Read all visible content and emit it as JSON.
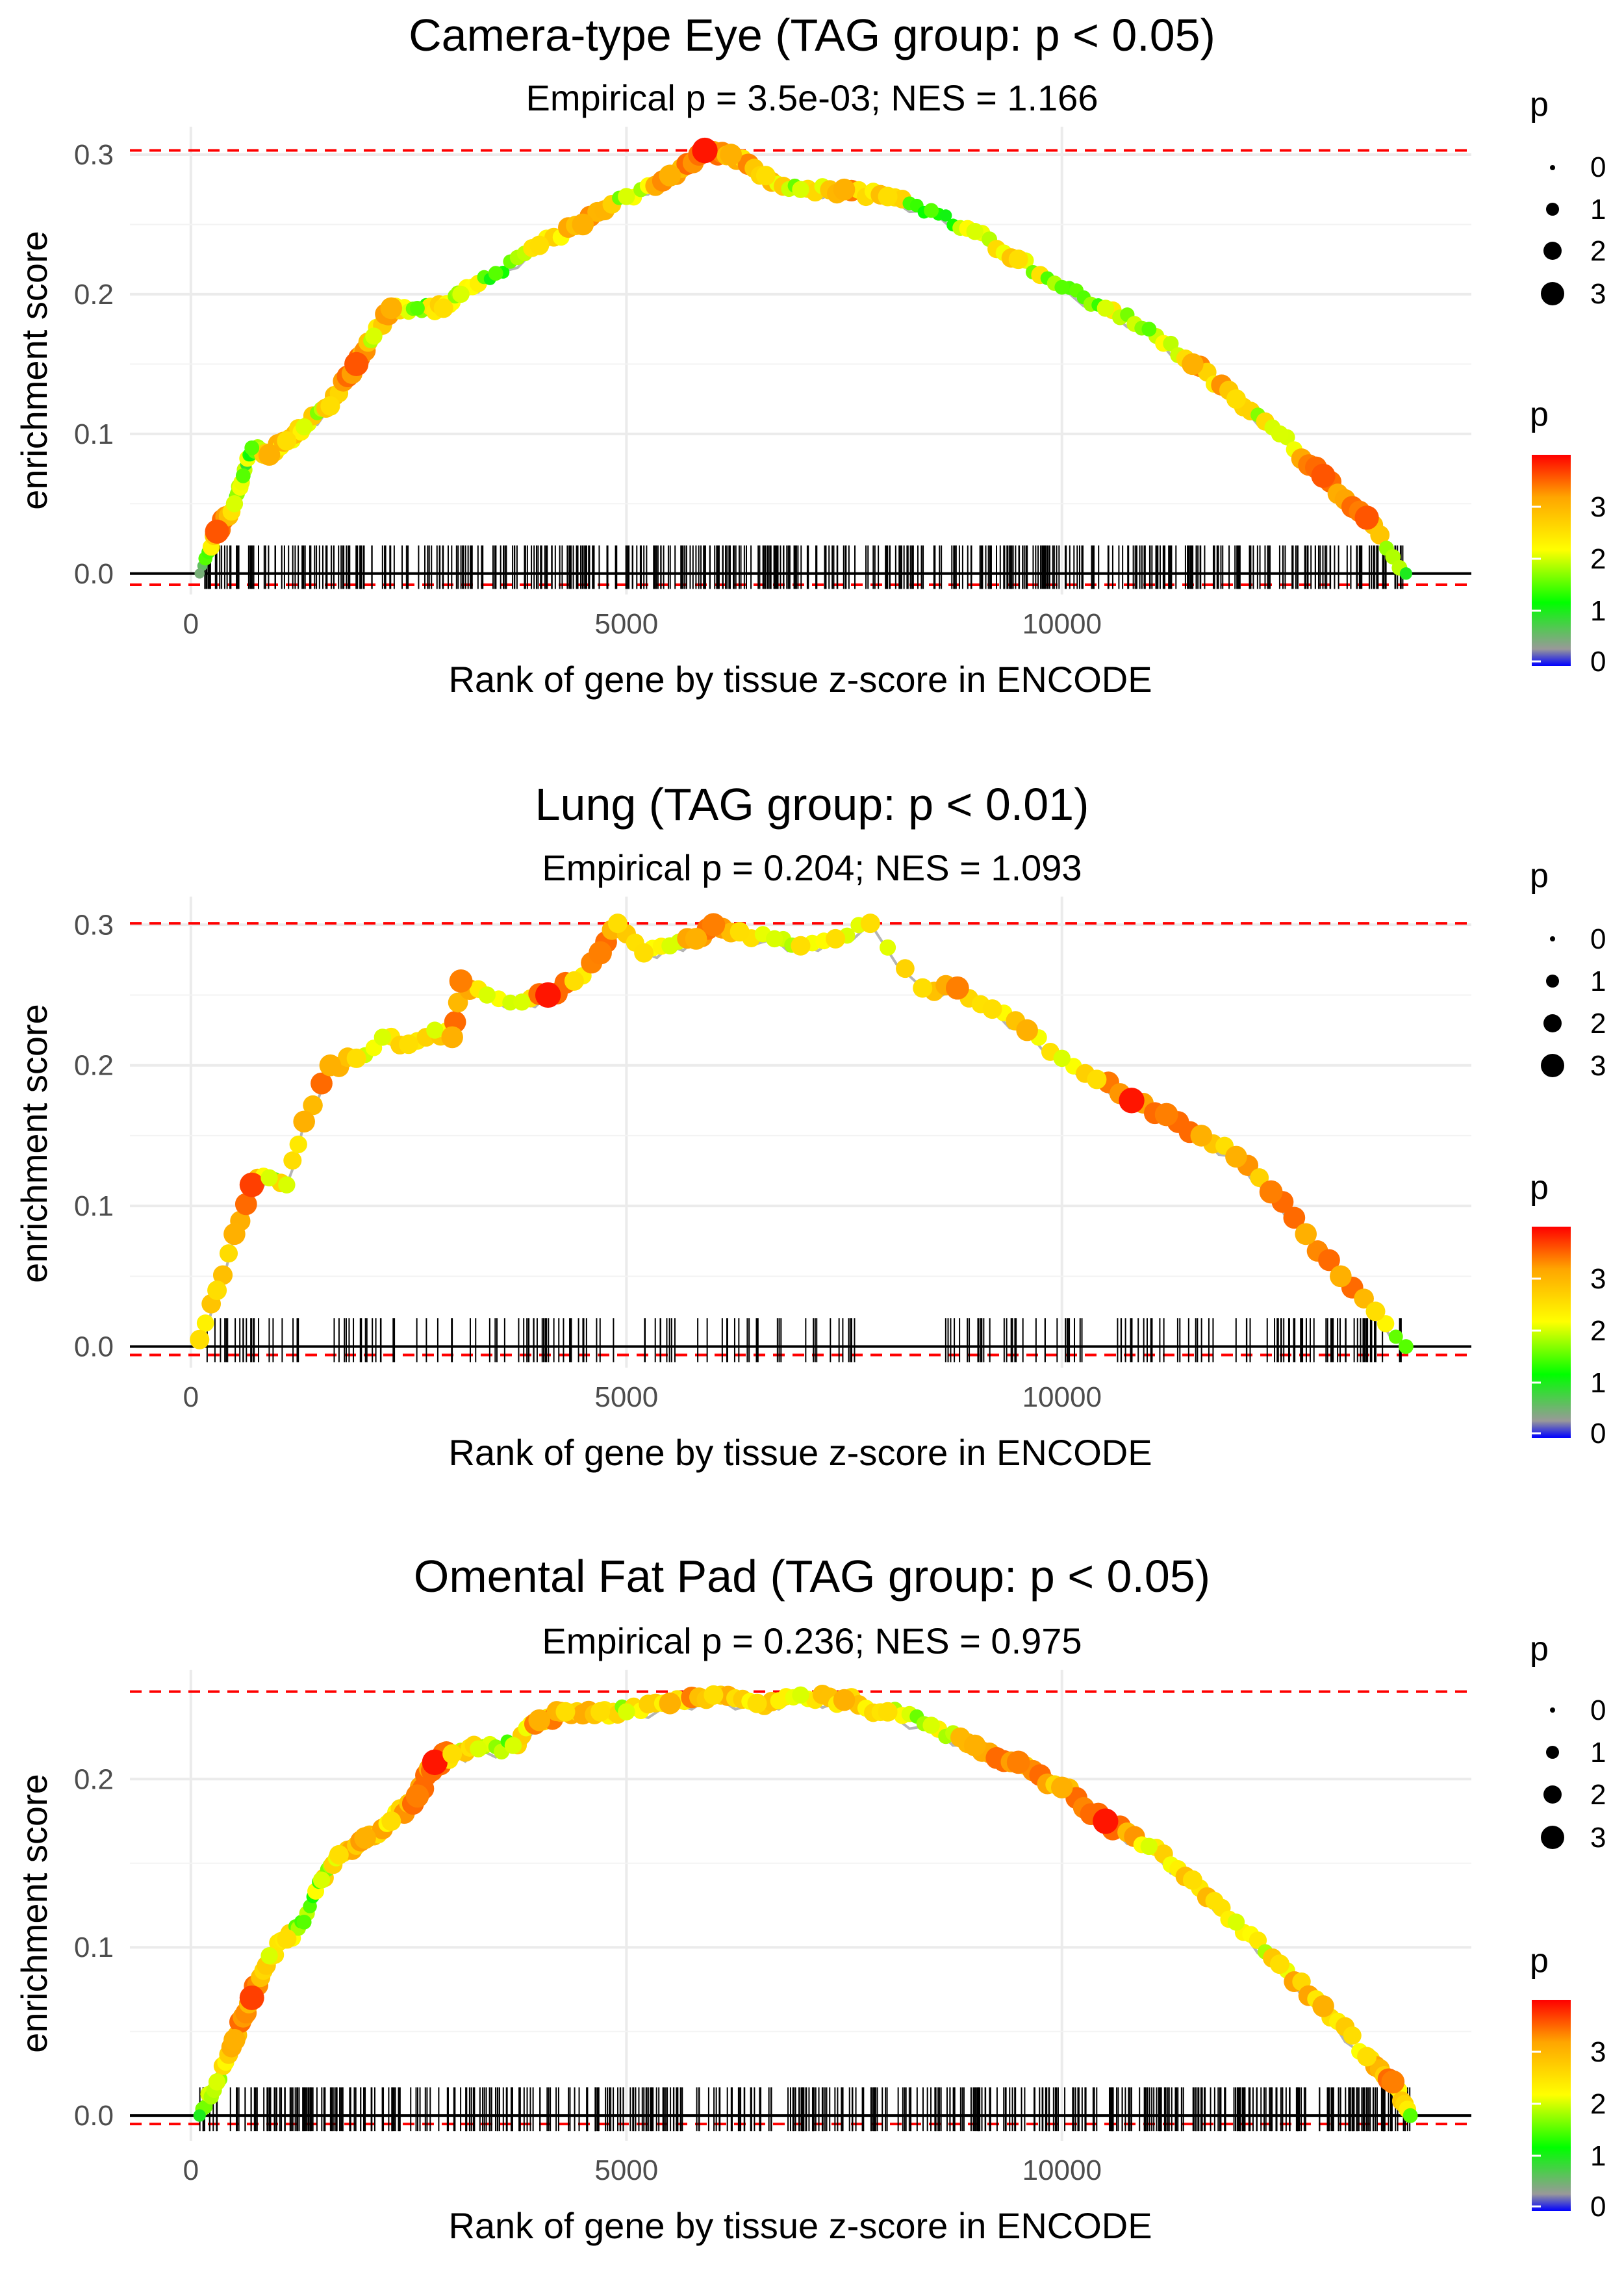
{
  "figure": {
    "legend_size_title": "p",
    "legend_size_labels": [
      "0",
      "1",
      "2",
      "3"
    ],
    "legend_color_title": "p",
    "legend_color_labels": [
      "3",
      "2",
      "1",
      "0"
    ],
    "colors": {
      "ref_line": "#ff0000",
      "grid": "#ebebeb",
      "walk_line": "#b3b3b3",
      "text": "#000000",
      "tick_text": "#4d4d4d"
    },
    "color_scale": [
      "#0000ff",
      "#999999",
      "#00ff00",
      "#ffff00",
      "#ffa500",
      "#ff0000"
    ]
  },
  "chart_data": [
    {
      "type": "line",
      "title": "Camera-type Eye (TAG group: p < 0.05)",
      "subtitle": "Empirical p = 3.5e-03; NES = 1.166",
      "xlabel": "Rank of gene by tissue z-score in ENCODE",
      "ylabel": "enrichment score",
      "xlim": [
        -700,
        14700
      ],
      "ylim": [
        -0.015,
        0.32
      ],
      "xticks": [
        0,
        5000,
        10000
      ],
      "xtick_labels": [
        "0",
        "5000",
        "10000"
      ],
      "yticks": [
        0.0,
        0.1,
        0.2,
        0.3
      ],
      "ytick_labels": [
        "0.0",
        "0.1",
        "0.2",
        "0.3"
      ],
      "max_es": 0.303,
      "min_es": -0.008,
      "x": [
        100,
        300,
        500,
        600,
        700,
        900,
        1100,
        1300,
        1600,
        1900,
        2100,
        2300,
        2600,
        2900,
        3100,
        3500,
        4000,
        4500,
        5000,
        5500,
        5900,
        6200,
        6600,
        7000,
        7500,
        8000,
        8500,
        9000,
        9500,
        10000,
        10500,
        11000,
        11500,
        12000,
        12500,
        13000,
        13500,
        13950
      ],
      "es": [
        0.0,
        0.03,
        0.05,
        0.07,
        0.09,
        0.085,
        0.095,
        0.105,
        0.12,
        0.15,
        0.17,
        0.19,
        0.19,
        0.19,
        0.2,
        0.215,
        0.235,
        0.25,
        0.27,
        0.285,
        0.303,
        0.3,
        0.285,
        0.275,
        0.275,
        0.27,
        0.26,
        0.245,
        0.225,
        0.205,
        0.19,
        0.175,
        0.15,
        0.125,
        0.1,
        0.07,
        0.04,
        0.0
      ],
      "p": [
        0.5,
        3.5,
        2.0,
        1.5,
        1.5,
        3.0,
        2.5,
        2.0,
        2.5,
        3.5,
        2.0,
        3.0,
        1.5,
        2.5,
        2.0,
        1.5,
        2.5,
        3.0,
        2.0,
        3.0,
        3.8,
        3.0,
        2.5,
        2.0,
        3.0,
        2.5,
        1.5,
        2.0,
        2.5,
        1.5,
        2.0,
        1.5,
        3.0,
        2.5,
        2.0,
        3.5,
        3.5,
        1.0
      ]
    },
    {
      "type": "line",
      "title": "Lung (TAG group: p < 0.01)",
      "subtitle": "Empirical p = 0.204; NES = 1.093",
      "xlabel": "Rank of gene by tissue z-score in ENCODE",
      "ylabel": "enrichment score",
      "xlim": [
        -700,
        14700
      ],
      "ylim": [
        -0.015,
        0.32
      ],
      "xticks": [
        0,
        5000,
        10000
      ],
      "xtick_labels": [
        "0",
        "5000",
        "10000"
      ],
      "yticks": [
        0.0,
        0.1,
        0.2,
        0.3
      ],
      "ytick_labels": [
        "0.0",
        "0.1",
        "0.2",
        "0.3"
      ],
      "max_es": 0.301,
      "min_es": -0.006,
      "x": [
        100,
        300,
        500,
        700,
        900,
        1100,
        1300,
        1600,
        1900,
        2200,
        2500,
        2800,
        3000,
        3100,
        3400,
        3800,
        4100,
        4400,
        4700,
        4900,
        5200,
        5500,
        5800,
        6000,
        6300,
        6700,
        7000,
        7400,
        7800,
        8400,
        8800,
        9200,
        9600,
        10000,
        10400,
        10800,
        11200,
        11600,
        12000,
        12400,
        12800,
        13200,
        13600,
        13950
      ],
      "es": [
        0.005,
        0.04,
        0.08,
        0.115,
        0.12,
        0.115,
        0.16,
        0.2,
        0.205,
        0.22,
        0.215,
        0.225,
        0.22,
        0.26,
        0.25,
        0.245,
        0.25,
        0.26,
        0.28,
        0.301,
        0.28,
        0.285,
        0.29,
        0.3,
        0.295,
        0.29,
        0.285,
        0.29,
        0.301,
        0.255,
        0.255,
        0.24,
        0.225,
        0.205,
        0.19,
        0.175,
        0.165,
        0.15,
        0.135,
        0.11,
        0.08,
        0.05,
        0.025,
        0.0
      ],
      "p": [
        2.5,
        2.5,
        3.0,
        3.6,
        2.0,
        2.0,
        3.0,
        3.0,
        2.5,
        2.0,
        2.5,
        2.0,
        3.0,
        3.3,
        2.0,
        2.0,
        3.8,
        2.5,
        3.3,
        2.5,
        2.5,
        2.0,
        3.0,
        3.3,
        2.5,
        2.0,
        2.5,
        2.5,
        2.5,
        2.5,
        3.3,
        2.5,
        3.0,
        2.0,
        2.5,
        3.8,
        3.3,
        3.0,
        3.0,
        3.3,
        3.0,
        3.0,
        2.5,
        1.5
      ]
    },
    {
      "type": "line",
      "title": "Omental Fat Pad (TAG group: p < 0.05)",
      "subtitle": "Empirical p = 0.236; NES = 0.975",
      "xlabel": "Rank of gene by tissue z-score in ENCODE",
      "ylabel": "enrichment score",
      "xlim": [
        -700,
        14700
      ],
      "ylim": [
        -0.015,
        0.265
      ],
      "xticks": [
        0,
        5000,
        10000
      ],
      "xtick_labels": [
        "0",
        "5000",
        "10000"
      ],
      "yticks": [
        0.0,
        0.1,
        0.2
      ],
      "ytick_labels": [
        "0.0",
        "0.1",
        "0.2"
      ],
      "max_es": 0.252,
      "min_es": -0.005,
      "x": [
        100,
        300,
        500,
        700,
        900,
        1100,
        1300,
        1500,
        1700,
        2000,
        2300,
        2600,
        2800,
        3000,
        3300,
        3700,
        4000,
        4300,
        4700,
        5000,
        5500,
        6000,
        6500,
        7000,
        7500,
        8000,
        8500,
        9000,
        9500,
        10000,
        10500,
        11000,
        11500,
        12000,
        12500,
        13000,
        13500,
        13800,
        14000
      ],
      "es": [
        0.0,
        0.02,
        0.045,
        0.07,
        0.095,
        0.105,
        0.115,
        0.14,
        0.155,
        0.165,
        0.175,
        0.19,
        0.21,
        0.215,
        0.218,
        0.22,
        0.235,
        0.24,
        0.24,
        0.24,
        0.245,
        0.25,
        0.245,
        0.25,
        0.247,
        0.24,
        0.232,
        0.22,
        0.21,
        0.195,
        0.175,
        0.16,
        0.14,
        0.115,
        0.09,
        0.065,
        0.035,
        0.02,
        0.0
      ],
      "p": [
        1.0,
        2.0,
        3.0,
        3.6,
        2.0,
        2.5,
        1.5,
        2.0,
        2.5,
        3.0,
        2.5,
        3.3,
        3.8,
        2.5,
        2.0,
        2.0,
        3.0,
        2.5,
        2.5,
        2.0,
        3.0,
        2.5,
        2.5,
        2.0,
        3.0,
        2.5,
        2.0,
        3.0,
        3.3,
        3.0,
        3.8,
        2.0,
        2.5,
        2.0,
        2.5,
        3.0,
        2.5,
        3.3,
        1.5
      ]
    }
  ]
}
